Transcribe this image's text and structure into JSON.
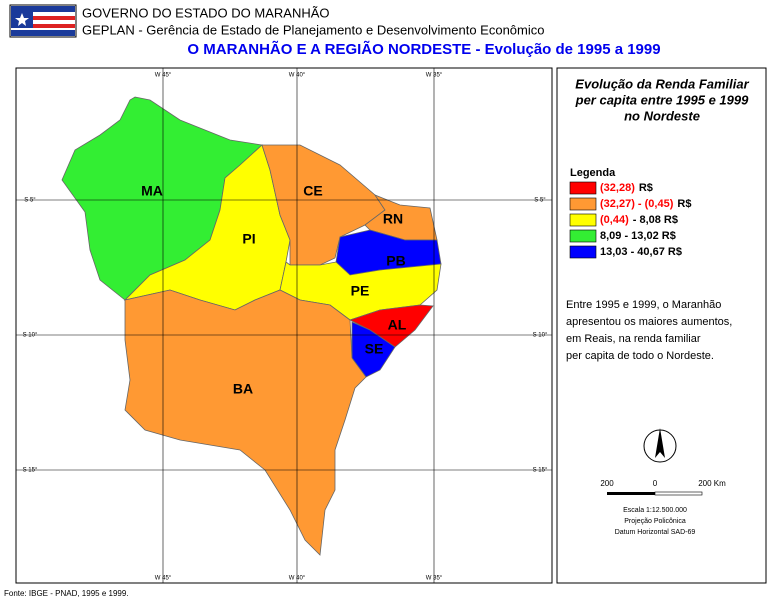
{
  "header": {
    "line1": "GOVERNO DO ESTADO DO MARANHÃO",
    "line2": "GEPLAN - Gerência de Estado de Planejamento e Desenvolvimento Econômico",
    "title": "O MARANHÃO E A REGIÃO NORDESTE - Evolução de 1995 a 1999"
  },
  "map": {
    "grid_labels": {
      "w45": "W 45°",
      "w40": "W 40°",
      "w35": "W 35°",
      "s5": "S 5°",
      "s10": "S 10°",
      "s15": "S 15°"
    },
    "states": [
      {
        "label": "MA",
        "color": "#33ee33"
      },
      {
        "label": "PI",
        "color": "#ffff00"
      },
      {
        "label": "CE",
        "color": "#ff9933"
      },
      {
        "label": "RN",
        "color": "#ff9933"
      },
      {
        "label": "PB",
        "color": "#0000ff"
      },
      {
        "label": "PE",
        "color": "#ffff00"
      },
      {
        "label": "AL",
        "color": "#ff0000"
      },
      {
        "label": "SE",
        "color": "#0000ff"
      },
      {
        "label": "BA",
        "color": "#ff9933"
      }
    ]
  },
  "panel": {
    "title": [
      "Evolução da Renda Familiar",
      "per capita entre 1995 e 1999",
      "no Nordeste"
    ],
    "legend": {
      "title": "Legenda",
      "items": [
        {
          "color": "#ff0000",
          "parts": [
            {
              "text": "(32,28)",
              "color": "#ff0000"
            },
            {
              "text": "R$",
              "color": "#000000"
            }
          ]
        },
        {
          "color": "#ff9933",
          "parts": [
            {
              "text": "(32,27) - (0,45)",
              "color": "#ff0000"
            },
            {
              "text": "R$",
              "color": "#000000"
            }
          ]
        },
        {
          "color": "#ffff00",
          "parts": [
            {
              "text": "(0,44)",
              "color": "#ff0000"
            },
            {
              "text": "- 8,08 R$",
              "color": "#000000"
            }
          ]
        },
        {
          "color": "#33ee33",
          "parts": [
            {
              "text": "8,09 - 13,02 R$",
              "color": "#000000"
            }
          ]
        },
        {
          "color": "#0000ff",
          "parts": [
            {
              "text": "13,03 - 40,67 R$",
              "color": "#000000"
            }
          ]
        }
      ]
    },
    "note": [
      "Entre 1995 e 1999, o Maranhão",
      "apresentou os maiores aumentos,",
      "em Reais, na renda familiar",
      "per capita de todo o Nordeste."
    ],
    "scale": {
      "left": "200",
      "zero": "0",
      "right": "200 Km",
      "text": "Escala 1:12.500.000",
      "projection": "Projeção Policônica",
      "datum": "Datum Horizontal SAD-69"
    }
  },
  "source": "Fonte: IBGE - PNAD, 1995 e 1999."
}
